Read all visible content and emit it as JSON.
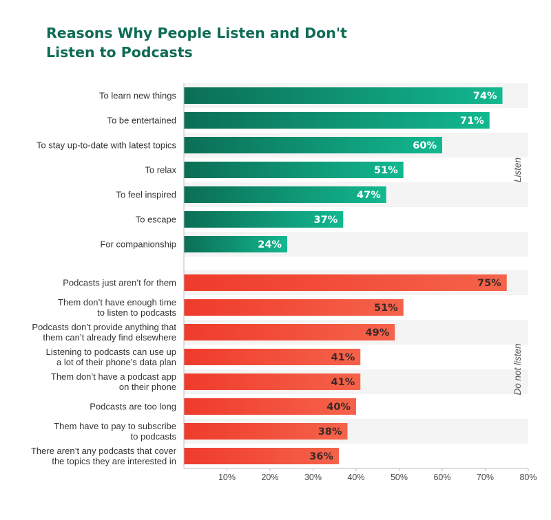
{
  "chart_data": {
    "type": "bar",
    "orientation": "horizontal",
    "title": "Reasons Why People Listen and Don't Listen to Podcasts",
    "title_lines": [
      "Reasons Why People Listen and Don't",
      "Listen to Podcasts"
    ],
    "xlim": [
      0,
      80
    ],
    "x_ticks": [
      "10%",
      "20%",
      "30%",
      "40%",
      "50%",
      "60%",
      "70%",
      "80%"
    ],
    "value_suffix": "%",
    "groups": [
      {
        "name": "Listen",
        "color_start": "#0b6e55",
        "color_end": "#12b890",
        "label_color": "#ffffff",
        "categories": [
          [
            "To learn new things"
          ],
          [
            "To be entertained"
          ],
          [
            "To stay up-to-date with latest topics"
          ],
          [
            "To relax"
          ],
          [
            "To feel inspired"
          ],
          [
            "To escape"
          ],
          [
            "For companionship"
          ]
        ],
        "values": [
          74,
          71,
          60,
          51,
          47,
          37,
          24
        ]
      },
      {
        "name": "Do not listen",
        "color_start": "#ef3b2c",
        "color_end": "#f5634a",
        "label_color": "#3a2a28",
        "categories": [
          [
            "Podcasts just aren’t for them"
          ],
          [
            "Them don’t have enough time",
            "to listen to podcasts"
          ],
          [
            "Podcasts don’t provide anything that",
            "them can’t already find elsewhere"
          ],
          [
            "Listening to podcasts can use up",
            "a lot of their phone’s data plan"
          ],
          [
            "Them don’t have a podcast app",
            "on their phone"
          ],
          [
            "Podcasts are too long"
          ],
          [
            "Them have to pay to subscribe",
            "to podcasts"
          ],
          [
            "There aren’t any podcasts that cover",
            "the topics they are interested in"
          ]
        ],
        "values": [
          75,
          51,
          49,
          41,
          41,
          40,
          38,
          36
        ]
      }
    ]
  }
}
